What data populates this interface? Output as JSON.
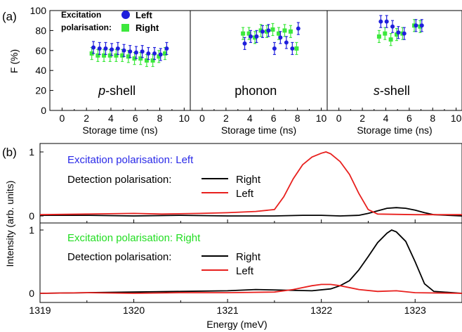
{
  "chart_data": [
    {
      "panel": "(a)",
      "type": "scatter",
      "ylabel": "F (%)",
      "ylim": [
        0,
        100
      ],
      "yticks": [
        "0",
        "20",
        "40",
        "60",
        "80",
        "100"
      ],
      "legend": {
        "title": [
          "Excitation",
          "polarisation:"
        ],
        "entries": [
          "Left",
          "Right"
        ],
        "placement": "top-left"
      },
      "subplots": [
        {
          "label_prefix": "p",
          "label_suffix": "-shell",
          "xlabel": "Storage time (ns)",
          "xlim": [
            -1,
            10.5
          ],
          "xticks": [
            "0",
            "2",
            "4",
            "6",
            "8",
            "10"
          ],
          "series": [
            {
              "name": "Left",
              "x": [
                2.5,
                3.0,
                3.5,
                4.0,
                4.5,
                5.0,
                5.5,
                6.0,
                6.5,
                7.0,
                7.5,
                8.0,
                8.5
              ],
              "y": [
                63,
                62,
                62,
                61,
                62,
                60,
                59,
                58,
                59,
                57,
                57,
                56,
                62
              ],
              "err": [
                6,
                6,
                6,
                6,
                6,
                6,
                6,
                6,
                6,
                6,
                6,
                6,
                6
              ]
            },
            {
              "name": "Right",
              "x": [
                2.5,
                3.0,
                3.5,
                4.0,
                4.5,
                5.0,
                5.5,
                6.0,
                6.5,
                7.0,
                7.5,
                8.0,
                8.5
              ],
              "y": [
                57,
                55,
                55,
                55,
                55,
                55,
                54,
                52,
                52,
                50,
                50,
                54,
                57
              ],
              "err": [
                6,
                6,
                6,
                6,
                6,
                6,
                6,
                6,
                6,
                6,
                6,
                6,
                6
              ]
            }
          ]
        },
        {
          "label_prefix": "",
          "label_suffix": "phonon",
          "xlabel": "Storage time (ns)",
          "xlim": [
            -1,
            10.5
          ],
          "xticks": [
            "0",
            "2",
            "4",
            "6",
            "8",
            "10"
          ],
          "series": [
            {
              "name": "Left",
              "x": [
                3.5,
                4.0,
                4.5,
                5.0,
                5.5,
                6.0,
                6.5,
                7.0,
                7.5,
                8.0
              ],
              "y": [
                67,
                74,
                74,
                79,
                80,
                62,
                73,
                68,
                62,
                82
              ],
              "err": [
                6,
                6,
                6,
                6,
                6,
                6,
                6,
                6,
                6,
                6
              ]
            },
            {
              "name": "Right",
              "x": [
                3.5,
                4.0,
                4.5,
                5.0,
                5.5,
                6.0,
                6.5,
                7.0,
                7.5,
                8.0
              ],
              "y": [
                77,
                77,
                73,
                80,
                79,
                81,
                77,
                80,
                79,
                62
              ],
              "err": [
                6,
                6,
                6,
                6,
                6,
                6,
                6,
                6,
                6,
                6
              ]
            }
          ]
        },
        {
          "label_prefix": "s",
          "label_suffix": "-shell",
          "xlabel": "Storage time (ns)",
          "xlim": [
            -1,
            10.5
          ],
          "xticks": [
            "0",
            "2",
            "4",
            "6",
            "8",
            "10"
          ],
          "series": [
            {
              "name": "Left",
              "x": [
                3.5,
                4.0,
                4.5,
                5.0,
                5.5,
                6.5,
                7.0
              ],
              "y": [
                89,
                89,
                84,
                78,
                77,
                85,
                85
              ],
              "err": [
                6,
                6,
                6,
                6,
                6,
                6,
                6
              ]
            },
            {
              "name": "Right",
              "x": [
                3.5,
                4.0,
                4.5,
                5.0,
                5.5,
                6.5,
                7.0
              ],
              "y": [
                74,
                77,
                71,
                76,
                77,
                85,
                84
              ],
              "err": [
                6,
                6,
                6,
                6,
                6,
                6,
                6
              ]
            }
          ]
        }
      ]
    },
    {
      "panel": "(b)",
      "type": "line",
      "xlabel": "Energy (meV)",
      "ylabel": "Intensity (arb. units)",
      "xlim": [
        1319,
        1323.5
      ],
      "xticks": [
        "1319",
        "1320",
        "1321",
        "1322",
        "1323"
      ],
      "ylim": [
        -0.1,
        1.1
      ],
      "yticks": [
        "0",
        "1"
      ],
      "subplots": [
        {
          "excitation_label": "Excitation polarisation: Left",
          "excitation_color": "#2a2ae8",
          "detection_label": "Detection polarisation:",
          "series": [
            {
              "name": "Right",
              "color": "#000000",
              "x": [
                1319,
                1319.5,
                1320,
                1320.5,
                1321,
                1321.5,
                1321.8,
                1322,
                1322.2,
                1322.4,
                1322.5,
                1322.6,
                1322.7,
                1322.8,
                1322.9,
                1323.0,
                1323.1,
                1323.2,
                1323.5
              ],
              "y": [
                0.01,
                0.01,
                0.0,
                0.01,
                0.0,
                0.0,
                0.01,
                0.01,
                0.0,
                0.01,
                0.04,
                0.08,
                0.12,
                0.13,
                0.12,
                0.09,
                0.05,
                0.02,
                0.0
              ]
            },
            {
              "name": "Left",
              "color": "#e8201e",
              "x": [
                1319,
                1319.5,
                1320,
                1320.3,
                1320.7,
                1321,
                1321.3,
                1321.5,
                1321.6,
                1321.7,
                1321.8,
                1321.9,
                1322,
                1322.05,
                1322.1,
                1322.2,
                1322.3,
                1322.4,
                1322.5,
                1322.6,
                1323,
                1323.5
              ],
              "y": [
                0.02,
                0.03,
                0.04,
                0.03,
                0.04,
                0.05,
                0.07,
                0.1,
                0.3,
                0.58,
                0.8,
                0.92,
                0.98,
                1.0,
                0.97,
                0.85,
                0.65,
                0.35,
                0.1,
                0.03,
                0.02,
                0.02
              ]
            }
          ]
        },
        {
          "excitation_label": "Excitation polarisation: Right",
          "excitation_color": "#22dd22",
          "detection_label": "Detection polarisation:",
          "series": [
            {
              "name": "Right",
              "color": "#000000",
              "x": [
                1319,
                1319.5,
                1320,
                1320.5,
                1321,
                1321.3,
                1321.6,
                1321.9,
                1322.1,
                1322.2,
                1322.3,
                1322.4,
                1322.5,
                1322.6,
                1322.7,
                1322.75,
                1322.8,
                1322.9,
                1323.0,
                1323.1,
                1323.2,
                1323.5
              ],
              "y": [
                0.0,
                0.01,
                0.02,
                0.03,
                0.04,
                0.06,
                0.05,
                0.04,
                0.07,
                0.12,
                0.2,
                0.37,
                0.58,
                0.8,
                0.95,
                1.0,
                0.97,
                0.82,
                0.5,
                0.15,
                0.03,
                0.0
              ]
            },
            {
              "name": "Left",
              "color": "#e8201e",
              "x": [
                1319,
                1319.5,
                1320,
                1320.5,
                1321,
                1321.5,
                1321.7,
                1321.9,
                1322.0,
                1322.1,
                1322.2,
                1322.4,
                1322.6,
                1322.8,
                1323.0,
                1323.5
              ],
              "y": [
                0.0,
                0.01,
                0.0,
                0.01,
                0.01,
                0.02,
                0.06,
                0.12,
                0.14,
                0.14,
                0.12,
                0.06,
                0.03,
                0.04,
                0.01,
                0.0
              ]
            }
          ]
        }
      ]
    }
  ]
}
